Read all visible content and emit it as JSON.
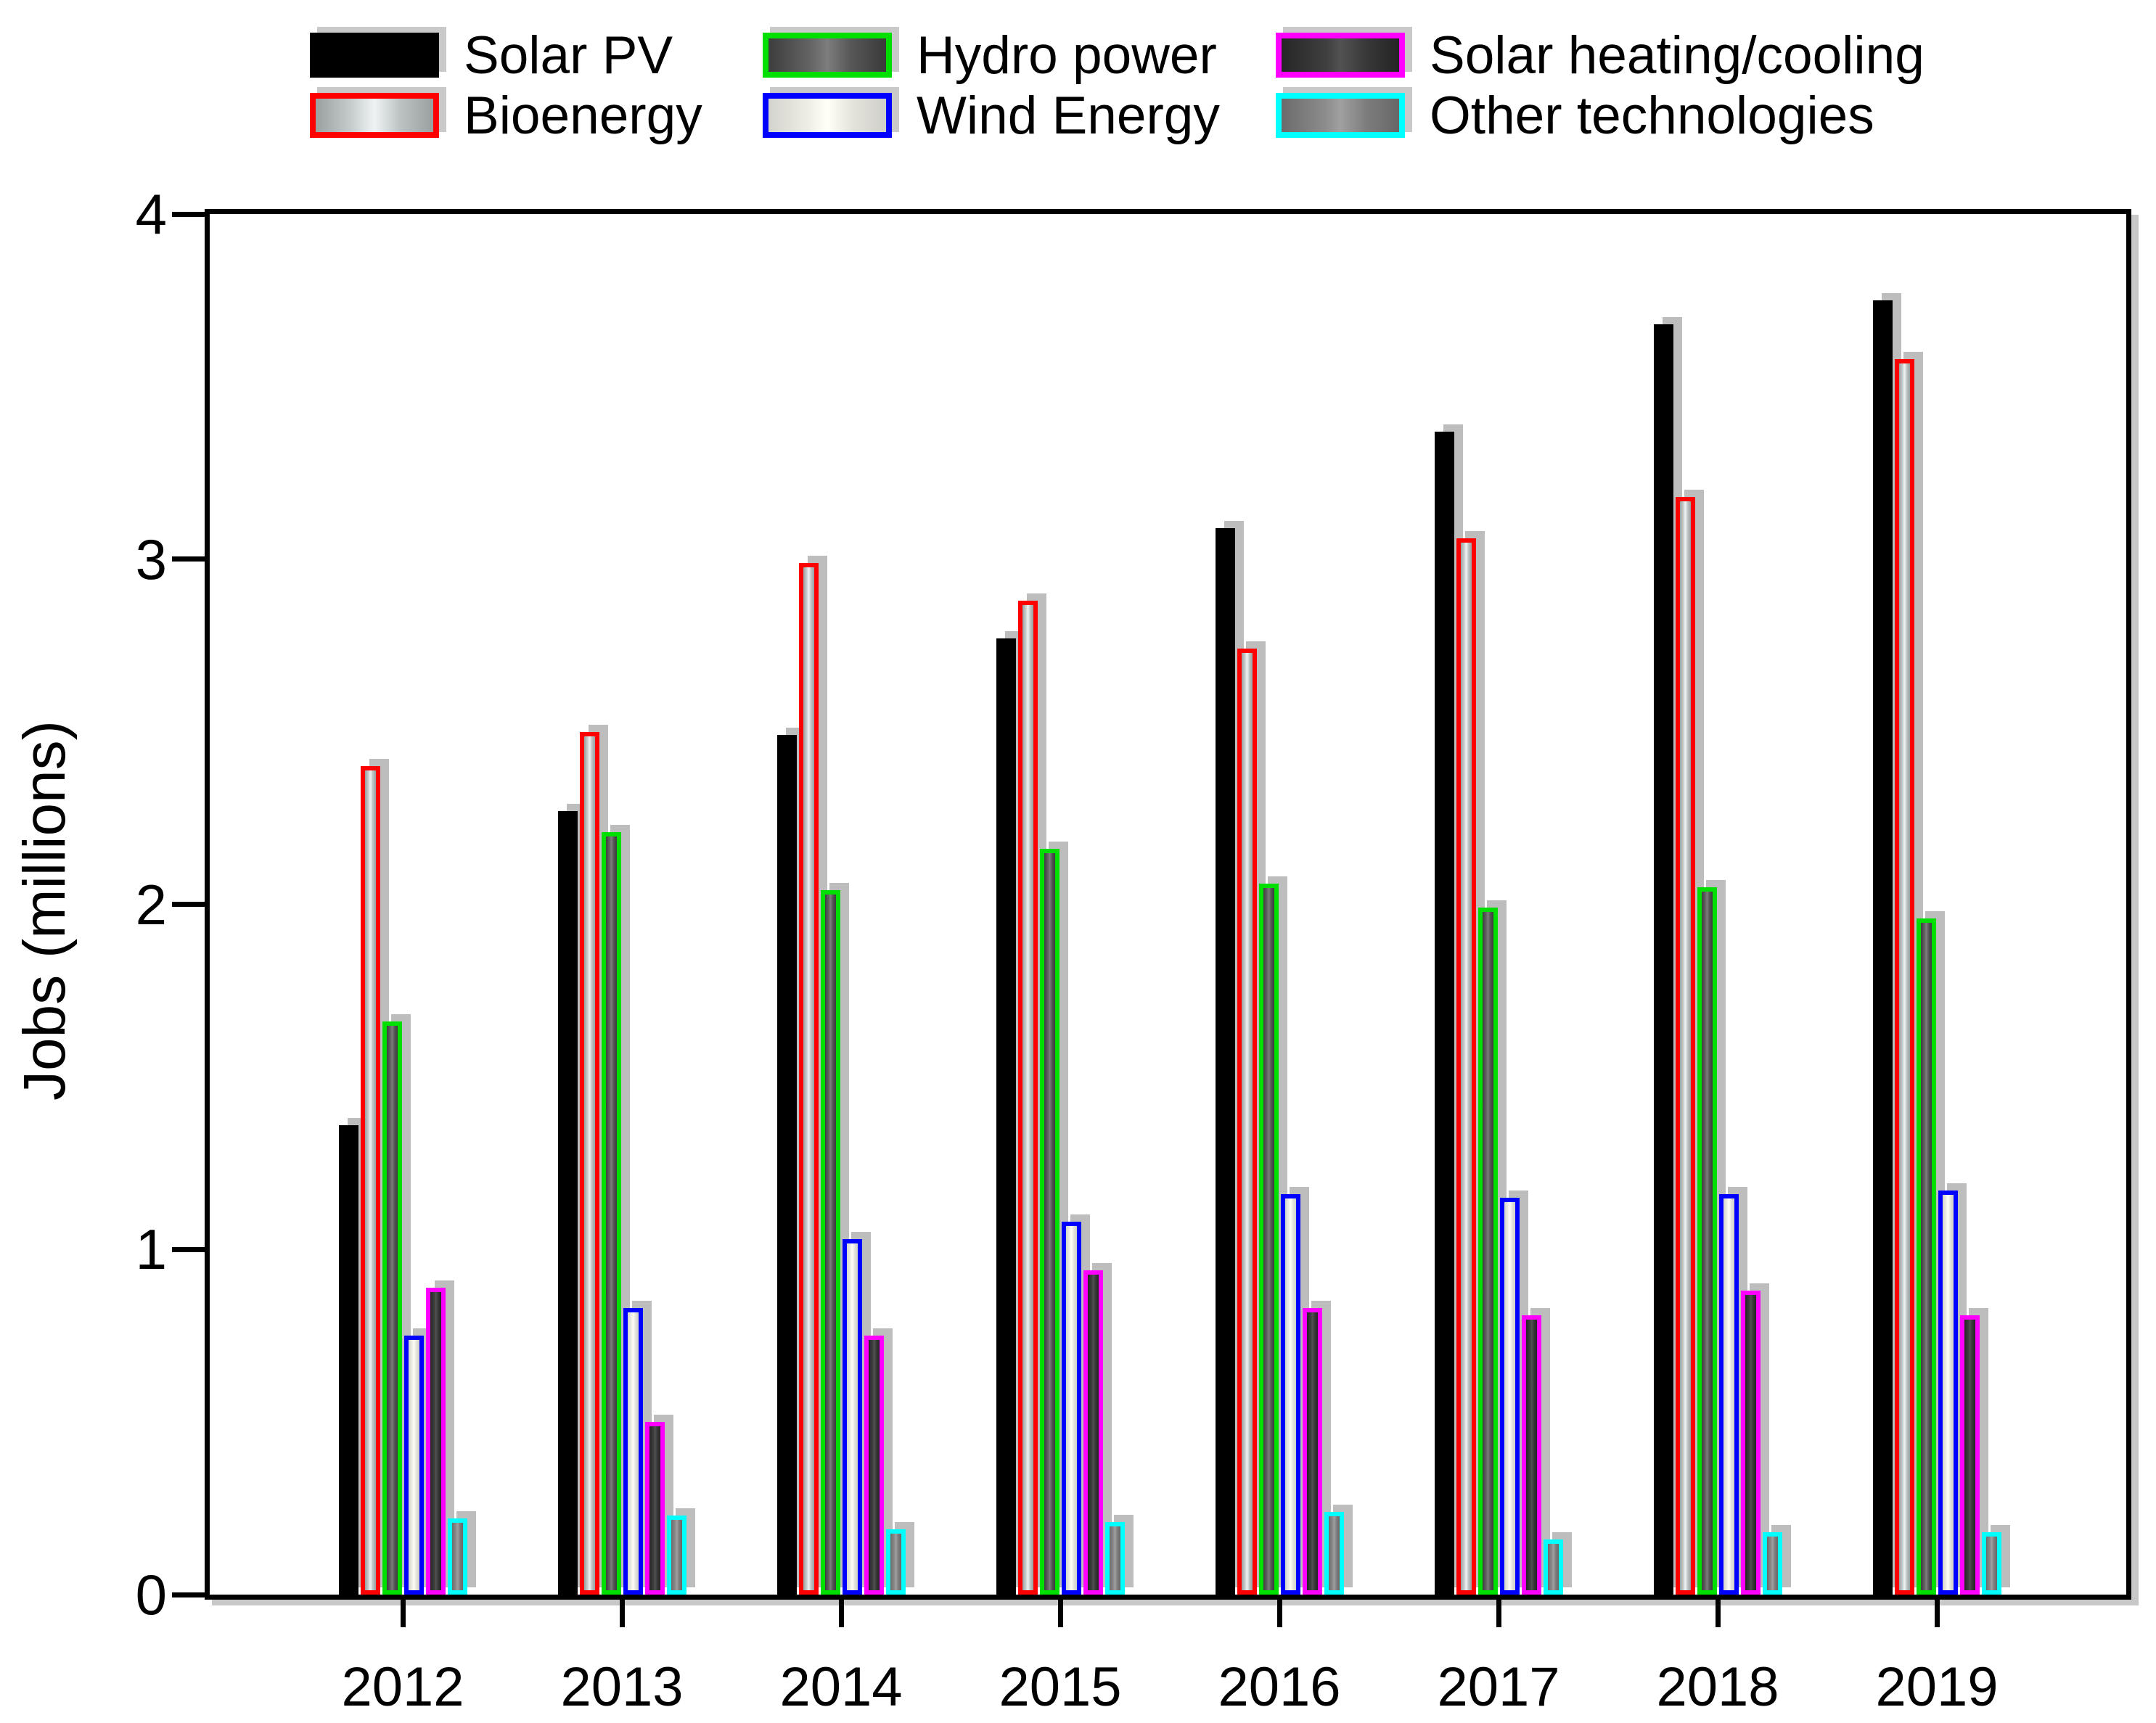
{
  "chart_data": {
    "type": "bar",
    "title": "",
    "xlabel": "",
    "ylabel": "Jobs (millions)",
    "ylim": [
      0,
      4
    ],
    "yticks": [
      0,
      1,
      2,
      3,
      4
    ],
    "categories": [
      "2012",
      "2013",
      "2014",
      "2015",
      "2016",
      "2017",
      "2018",
      "2019"
    ],
    "grid": false,
    "legend_position": "top",
    "series": [
      {
        "id": "solar_pv",
        "name": "Solar PV",
        "border_color": "#000000",
        "fill_stops": [
          "#000000 0%",
          "#000000 100%"
        ],
        "values": [
          1.36,
          2.27,
          2.49,
          2.77,
          3.09,
          3.37,
          3.68,
          3.75
        ]
      },
      {
        "id": "bioenergy",
        "name": "Bioenergy",
        "border_color": "#fe0000",
        "fill_stops": [
          "#9aa0a0 0%",
          "#c6cccc 30%",
          "#eff3f3 50%",
          "#bcc2c2 72%",
          "#9aa0a0 100%"
        ],
        "values": [
          2.4,
          2.5,
          2.99,
          2.88,
          2.74,
          3.06,
          3.18,
          3.58
        ]
      },
      {
        "id": "hydro",
        "name": "Hydro power",
        "border_color": "#00e000",
        "fill_stops": [
          "#3d3d3d 0%",
          "#636363 35%",
          "#7d7d7d 50%",
          "#575757 70%",
          "#3a3a3a 100%"
        ],
        "values": [
          1.66,
          2.21,
          2.04,
          2.16,
          2.06,
          1.99,
          2.05,
          1.96
        ]
      },
      {
        "id": "wind",
        "name": "Wind Energy",
        "border_color": "#0000fe",
        "fill_stops": [
          "#d3d3cd 0%",
          "#efefe7 35%",
          "#fffff7 50%",
          "#e3e3db 72%",
          "#cfcfc9 100%"
        ],
        "values": [
          0.75,
          0.83,
          1.03,
          1.08,
          1.16,
          1.15,
          1.16,
          1.17
        ]
      },
      {
        "id": "shc",
        "name": "Solar heating/cooling",
        "border_color": "#ff00ff",
        "fill_stops": [
          "#262626 0%",
          "#3f3f3f 38%",
          "#525252 50%",
          "#383838 72%",
          "#242424 100%"
        ],
        "values": [
          0.89,
          0.5,
          0.75,
          0.94,
          0.83,
          0.81,
          0.88,
          0.81
        ]
      },
      {
        "id": "other",
        "name": "Other technologies",
        "border_color": "#00ffff",
        "fill_stops": [
          "#6b6b6b 0%",
          "#8d8d8d 38%",
          "#a0a0a0 50%",
          "#7d7d7d 72%",
          "#676767 100%"
        ],
        "values": [
          0.22,
          0.23,
          0.19,
          0.21,
          0.24,
          0.16,
          0.18,
          0.18
        ]
      }
    ],
    "legend_columns": [
      [
        "solar_pv",
        "bioenergy"
      ],
      [
        "hydro",
        "wind"
      ],
      [
        "shc",
        "other"
      ]
    ]
  }
}
